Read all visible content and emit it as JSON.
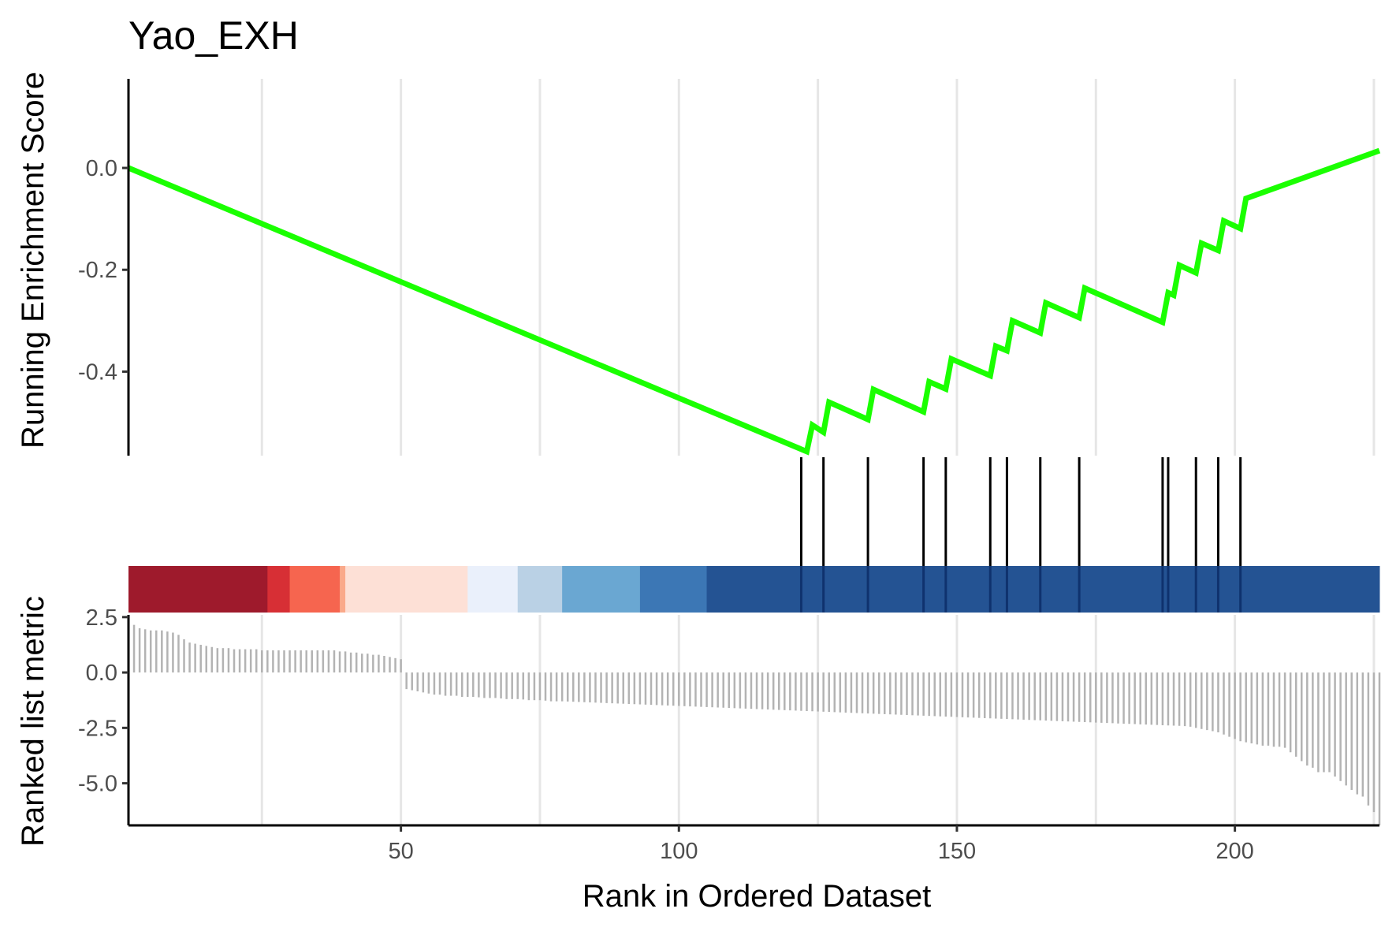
{
  "chart_data": {
    "type": "line",
    "title": "Yao_EXH",
    "xlabel": "Rank in Ordered Dataset",
    "x_ticks": [
      "50",
      "100",
      "150",
      "200"
    ],
    "xlim": [
      1,
      226
    ],
    "grid": "vertical major and minor lines",
    "colors": {
      "curve": "#1AFF00",
      "hits": "#000000",
      "metric_bars": "#B3B3B3",
      "axis": "#000000",
      "grid": "#E6E6E6"
    },
    "panels": {
      "enrichment": {
        "ylabel": "Running Enrichment Score",
        "y_ticks": [
          "0.0",
          "-0.2",
          "-0.4"
        ],
        "ylim": [
          -0.565,
          0.175
        ],
        "series": [
          {
            "points": [
              [
                1,
                0.0
              ],
              [
                123,
                -0.557
              ],
              [
                124,
                -0.505
              ],
              [
                126,
                -0.519
              ],
              [
                127,
                -0.46
              ],
              [
                134,
                -0.494
              ],
              [
                135,
                -0.435
              ],
              [
                144,
                -0.479
              ],
              [
                145,
                -0.42
              ],
              [
                148,
                -0.434
              ],
              [
                149,
                -0.375
              ],
              [
                156,
                -0.408
              ],
              [
                157,
                -0.35
              ],
              [
                159,
                -0.359
              ],
              [
                160,
                -0.3
              ],
              [
                165,
                -0.324
              ],
              [
                166,
                -0.265
              ],
              [
                172,
                -0.294
              ],
              [
                173,
                -0.236
              ],
              [
                187,
                -0.303
              ],
              [
                188,
                -0.245
              ],
              [
                189,
                -0.25
              ],
              [
                190,
                -0.191
              ],
              [
                193,
                -0.206
              ],
              [
                194,
                -0.148
              ],
              [
                197,
                -0.162
              ],
              [
                198,
                -0.104
              ],
              [
                201,
                -0.119
              ],
              [
                202,
                -0.06
              ],
              [
                226,
                0.034
              ]
            ]
          }
        ],
        "hit_positions": [
          122,
          126,
          134,
          144,
          148,
          156,
          159,
          165,
          172,
          187,
          188,
          193,
          197,
          201
        ]
      },
      "color_strip": {
        "segments": [
          {
            "from": 1,
            "to": 26,
            "color": "#9E1A2C"
          },
          {
            "from": 26,
            "to": 30,
            "color": "#D72F35"
          },
          {
            "from": 30,
            "to": 39,
            "color": "#F6654F"
          },
          {
            "from": 39,
            "to": 40,
            "color": "#FAA98A"
          },
          {
            "from": 40,
            "to": 62,
            "color": "#FDE0D6"
          },
          {
            "from": 62,
            "to": 71,
            "color": "#EAF0FB"
          },
          {
            "from": 71,
            "to": 79,
            "color": "#BAD1E5"
          },
          {
            "from": 79,
            "to": 93,
            "color": "#6AA7D2"
          },
          {
            "from": 93,
            "to": 105,
            "color": "#3C77B5"
          },
          {
            "from": 105,
            "to": 226,
            "color": "#245393"
          }
        ]
      },
      "ranked_metric": {
        "ylabel": "Ranked list metric",
        "y_ticks": [
          "2.5",
          "0.0",
          "-2.5",
          "-5.0"
        ],
        "ylim": [
          -6.9,
          2.6
        ],
        "values": [
          2.2,
          2.15,
          2.0,
          1.95,
          1.9,
          1.9,
          1.9,
          1.85,
          1.8,
          1.7,
          1.5,
          1.35,
          1.3,
          1.25,
          1.2,
          1.15,
          1.1,
          1.1,
          1.1,
          1.05,
          1.05,
          1.05,
          1.05,
          1.05,
          1.0,
          1.0,
          1.0,
          1.0,
          1.0,
          1.0,
          1.0,
          1.0,
          1.0,
          1.0,
          1.0,
          1.0,
          1.0,
          1.0,
          0.95,
          0.95,
          0.9,
          0.9,
          0.85,
          0.85,
          0.8,
          0.8,
          0.75,
          0.7,
          0.65,
          0.6,
          -0.75,
          -0.8,
          -0.85,
          -0.9,
          -0.95,
          -1.0,
          -1.0,
          -1.05,
          -1.05,
          -1.05,
          -1.1,
          -1.1,
          -1.1,
          -1.12,
          -1.15,
          -1.15,
          -1.15,
          -1.17,
          -1.2,
          -1.2,
          -1.2,
          -1.22,
          -1.25,
          -1.25,
          -1.25,
          -1.27,
          -1.3,
          -1.3,
          -1.3,
          -1.31,
          -1.32,
          -1.33,
          -1.34,
          -1.35,
          -1.36,
          -1.37,
          -1.38,
          -1.39,
          -1.4,
          -1.41,
          -1.42,
          -1.43,
          -1.44,
          -1.45,
          -1.46,
          -1.47,
          -1.48,
          -1.49,
          -1.5,
          -1.51,
          -1.52,
          -1.53,
          -1.54,
          -1.55,
          -1.56,
          -1.57,
          -1.58,
          -1.59,
          -1.6,
          -1.61,
          -1.62,
          -1.63,
          -1.64,
          -1.65,
          -1.66,
          -1.67,
          -1.68,
          -1.69,
          -1.7,
          -1.71,
          -1.72,
          -1.73,
          -1.74,
          -1.75,
          -1.76,
          -1.77,
          -1.78,
          -1.79,
          -1.8,
          -1.81,
          -1.82,
          -1.83,
          -1.84,
          -1.85,
          -1.86,
          -1.87,
          -1.88,
          -1.89,
          -1.9,
          -1.91,
          -1.92,
          -1.93,
          -1.94,
          -1.95,
          -1.96,
          -1.97,
          -1.98,
          -1.99,
          -2.0,
          -2.01,
          -2.02,
          -2.03,
          -2.04,
          -2.05,
          -2.06,
          -2.07,
          -2.08,
          -2.09,
          -2.1,
          -2.11,
          -2.12,
          -2.13,
          -2.14,
          -2.15,
          -2.16,
          -2.17,
          -2.18,
          -2.19,
          -2.2,
          -2.21,
          -2.22,
          -2.23,
          -2.24,
          -2.25,
          -2.26,
          -2.27,
          -2.28,
          -2.29,
          -2.3,
          -2.31,
          -2.32,
          -2.33,
          -2.34,
          -2.35,
          -2.36,
          -2.37,
          -2.38,
          -2.39,
          -2.4,
          -2.41,
          -2.42,
          -2.45,
          -2.5,
          -2.55,
          -2.6,
          -2.65,
          -2.7,
          -2.8,
          -2.9,
          -3.0,
          -3.1,
          -3.15,
          -3.2,
          -3.25,
          -3.3,
          -3.3,
          -3.35,
          -3.35,
          -3.4,
          -3.6,
          -3.8,
          -4.0,
          -4.2,
          -4.3,
          -4.5,
          -4.5,
          -4.5,
          -4.7,
          -4.9,
          -5.1,
          -5.3,
          -5.5,
          -5.6,
          -6.0,
          -6.3,
          -6.9
        ]
      }
    }
  }
}
